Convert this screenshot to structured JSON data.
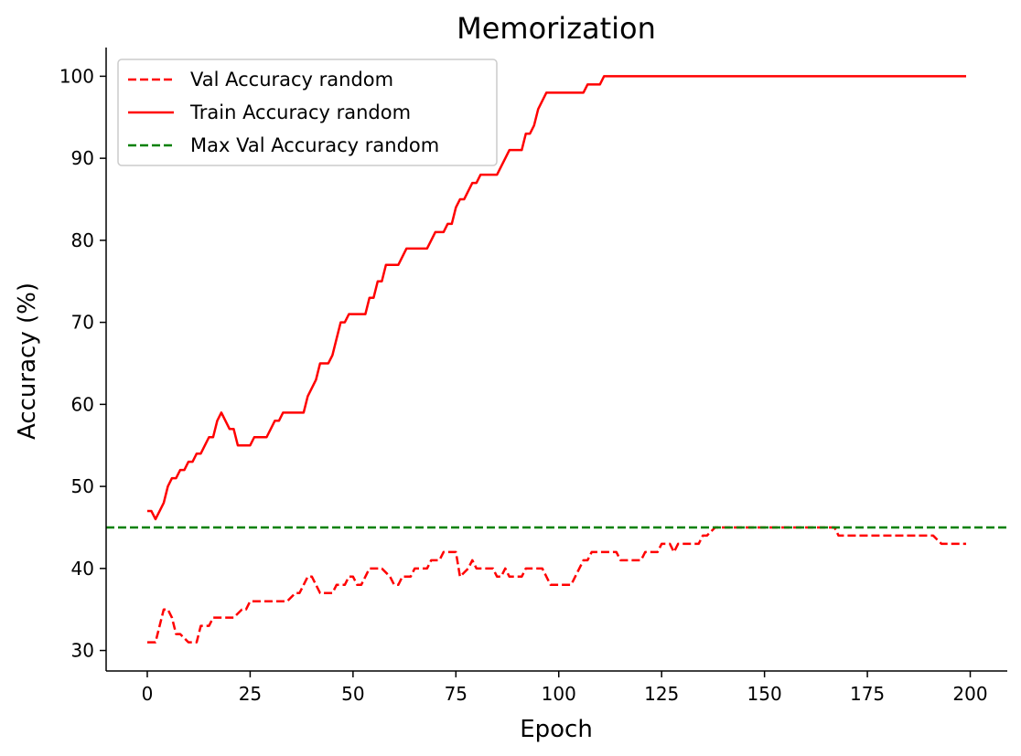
{
  "chart_data": {
    "type": "line",
    "title": "Memorization",
    "xlabel": "Epoch",
    "ylabel": "Accuracy (%)",
    "xlim": [
      -10,
      209
    ],
    "ylim": [
      27.5,
      103.5
    ],
    "xticks": [
      0,
      25,
      50,
      75,
      100,
      125,
      150,
      175,
      200
    ],
    "yticks": [
      30,
      40,
      50,
      60,
      70,
      80,
      90,
      100
    ],
    "grid": false,
    "legend_position": "top-left",
    "series": [
      {
        "name": "Val Accuracy random",
        "style": "dashed",
        "color": "#ff0000",
        "points": [
          [
            0,
            31
          ],
          [
            2,
            31
          ],
          [
            4,
            35
          ],
          [
            5,
            35
          ],
          [
            6,
            34
          ],
          [
            7,
            32
          ],
          [
            8,
            32
          ],
          [
            10,
            31
          ],
          [
            12,
            31
          ],
          [
            13,
            33
          ],
          [
            15,
            33
          ],
          [
            16,
            34
          ],
          [
            21,
            34
          ],
          [
            23,
            35
          ],
          [
            24,
            35
          ],
          [
            25,
            36
          ],
          [
            34,
            36
          ],
          [
            36,
            37
          ],
          [
            37,
            37
          ],
          [
            38,
            38
          ],
          [
            39,
            39
          ],
          [
            40,
            39
          ],
          [
            42,
            37
          ],
          [
            45,
            37
          ],
          [
            46,
            38
          ],
          [
            48,
            38
          ],
          [
            49,
            39
          ],
          [
            50,
            39
          ],
          [
            51,
            38
          ],
          [
            52,
            38
          ],
          [
            53,
            39
          ],
          [
            54,
            40
          ],
          [
            57,
            40
          ],
          [
            59,
            39
          ],
          [
            60,
            38
          ],
          [
            61,
            38
          ],
          [
            62,
            39
          ],
          [
            64,
            39
          ],
          [
            65,
            40
          ],
          [
            68,
            40
          ],
          [
            69,
            41
          ],
          [
            71,
            41
          ],
          [
            72,
            42
          ],
          [
            75,
            42
          ],
          [
            76,
            39
          ],
          [
            78,
            40
          ],
          [
            79,
            41
          ],
          [
            80,
            40
          ],
          [
            84,
            40
          ],
          [
            85,
            39
          ],
          [
            86,
            39
          ],
          [
            87,
            40
          ],
          [
            88,
            39
          ],
          [
            91,
            39
          ],
          [
            92,
            40
          ],
          [
            96,
            40
          ],
          [
            98,
            38
          ],
          [
            103,
            38
          ],
          [
            105,
            40
          ],
          [
            106,
            41
          ],
          [
            107,
            41
          ],
          [
            108,
            42
          ],
          [
            114,
            42
          ],
          [
            115,
            41
          ],
          [
            120,
            41
          ],
          [
            121,
            42
          ],
          [
            124,
            42
          ],
          [
            125,
            43
          ],
          [
            127,
            43
          ],
          [
            128,
            42
          ],
          [
            129,
            43
          ],
          [
            131,
            43
          ],
          [
            134,
            43
          ],
          [
            135,
            44
          ],
          [
            136,
            44
          ],
          [
            138,
            45
          ],
          [
            167,
            45
          ],
          [
            168,
            44
          ],
          [
            191,
            44
          ],
          [
            193,
            43
          ],
          [
            199,
            43
          ]
        ]
      },
      {
        "name": "Train Accuracy random",
        "style": "solid",
        "color": "#ff0000",
        "points": [
          [
            0,
            47
          ],
          [
            1,
            47
          ],
          [
            2,
            46
          ],
          [
            3,
            47
          ],
          [
            4,
            48
          ],
          [
            5,
            50
          ],
          [
            6,
            51
          ],
          [
            7,
            51
          ],
          [
            8,
            52
          ],
          [
            9,
            52
          ],
          [
            10,
            53
          ],
          [
            11,
            53
          ],
          [
            12,
            54
          ],
          [
            13,
            54
          ],
          [
            14,
            55
          ],
          [
            15,
            56
          ],
          [
            16,
            56
          ],
          [
            17,
            58
          ],
          [
            18,
            59
          ],
          [
            19,
            58
          ],
          [
            20,
            57
          ],
          [
            21,
            57
          ],
          [
            22,
            55
          ],
          [
            25,
            55
          ],
          [
            26,
            56
          ],
          [
            29,
            56
          ],
          [
            30,
            57
          ],
          [
            31,
            58
          ],
          [
            32,
            58
          ],
          [
            33,
            59
          ],
          [
            38,
            59
          ],
          [
            39,
            61
          ],
          [
            40,
            62
          ],
          [
            41,
            63
          ],
          [
            42,
            65
          ],
          [
            44,
            65
          ],
          [
            45,
            66
          ],
          [
            46,
            68
          ],
          [
            47,
            70
          ],
          [
            48,
            70
          ],
          [
            49,
            71
          ],
          [
            53,
            71
          ],
          [
            54,
            73
          ],
          [
            55,
            73
          ],
          [
            56,
            75
          ],
          [
            57,
            75
          ],
          [
            58,
            77
          ],
          [
            61,
            77
          ],
          [
            62,
            78
          ],
          [
            63,
            79
          ],
          [
            68,
            79
          ],
          [
            69,
            80
          ],
          [
            70,
            81
          ],
          [
            72,
            81
          ],
          [
            73,
            82
          ],
          [
            74,
            82
          ],
          [
            75,
            84
          ],
          [
            76,
            85
          ],
          [
            77,
            85
          ],
          [
            79,
            87
          ],
          [
            80,
            87
          ],
          [
            81,
            88
          ],
          [
            85,
            88
          ],
          [
            87,
            90
          ],
          [
            88,
            91
          ],
          [
            91,
            91
          ],
          [
            92,
            93
          ],
          [
            93,
            93
          ],
          [
            94,
            94
          ],
          [
            95,
            96
          ],
          [
            96,
            97
          ],
          [
            97,
            98
          ],
          [
            106,
            98
          ],
          [
            107,
            99
          ],
          [
            110,
            99
          ],
          [
            111,
            100
          ],
          [
            199,
            100
          ]
        ]
      },
      {
        "name": "Max Val Accuracy random",
        "style": "dashed-hline",
        "color": "#008000",
        "value": 45
      }
    ]
  }
}
